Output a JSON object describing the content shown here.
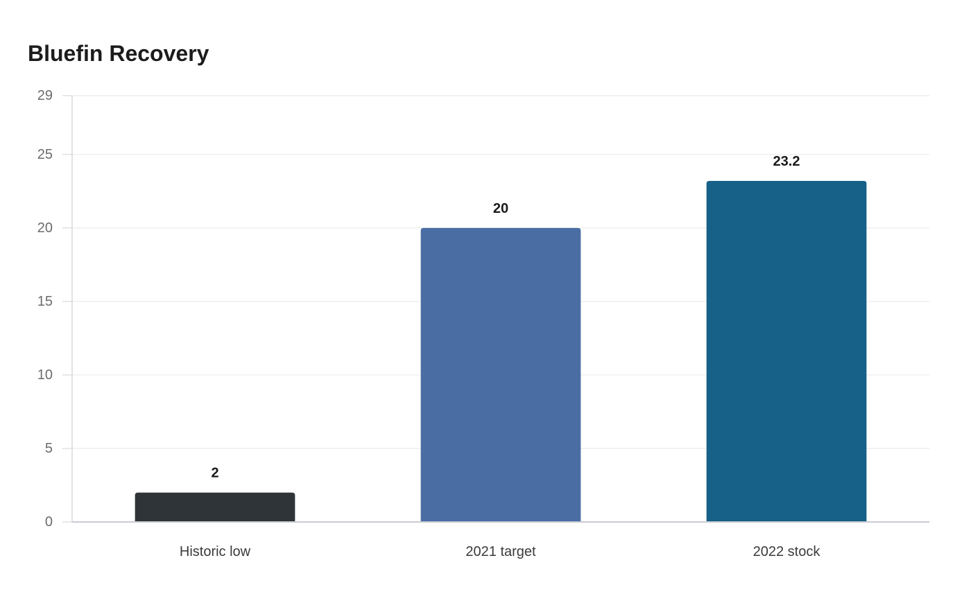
{
  "chart_data": {
    "type": "bar",
    "title": "Bluefin Recovery",
    "xlabel": "",
    "ylabel": "",
    "categories": [
      "Historic low",
      "2021 target",
      "2022 stock"
    ],
    "values": [
      2,
      20,
      23.2
    ],
    "value_labels": [
      "2",
      "20",
      "23.2"
    ],
    "colors": [
      "#2f3438",
      "#4a6ea3",
      "#176087"
    ],
    "ylim": [
      0,
      29
    ],
    "yticks": [
      0,
      5,
      10,
      15,
      20,
      25,
      29
    ],
    "grid": true,
    "legend": "none"
  }
}
